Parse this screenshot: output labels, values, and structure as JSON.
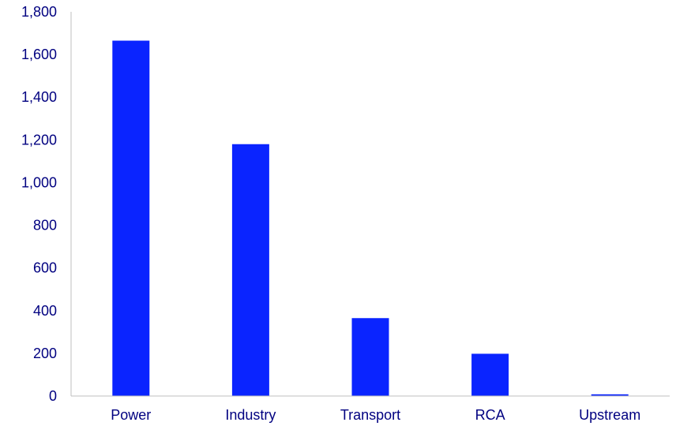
{
  "chart_data": {
    "type": "bar",
    "categories": [
      "Power",
      "Industry",
      "Transport",
      "RCA",
      "Upstream"
    ],
    "values": [
      1665,
      1180,
      365,
      198,
      8
    ],
    "ylim": [
      0,
      1800
    ],
    "yticks": [
      0,
      200,
      400,
      600,
      800,
      1000,
      1200,
      1400,
      1600,
      1800
    ],
    "ytick_labels": [
      "0",
      "200",
      "400",
      "600",
      "800",
      "1,000",
      "1,200",
      "1,400",
      "1,600",
      "1,800"
    ],
    "title": "",
    "xlabel": "",
    "ylabel": "",
    "grid": false,
    "legend": "none"
  },
  "colors": {
    "bar": "#0a24ff",
    "axis": "#bfbfbf",
    "text": "#000080"
  }
}
